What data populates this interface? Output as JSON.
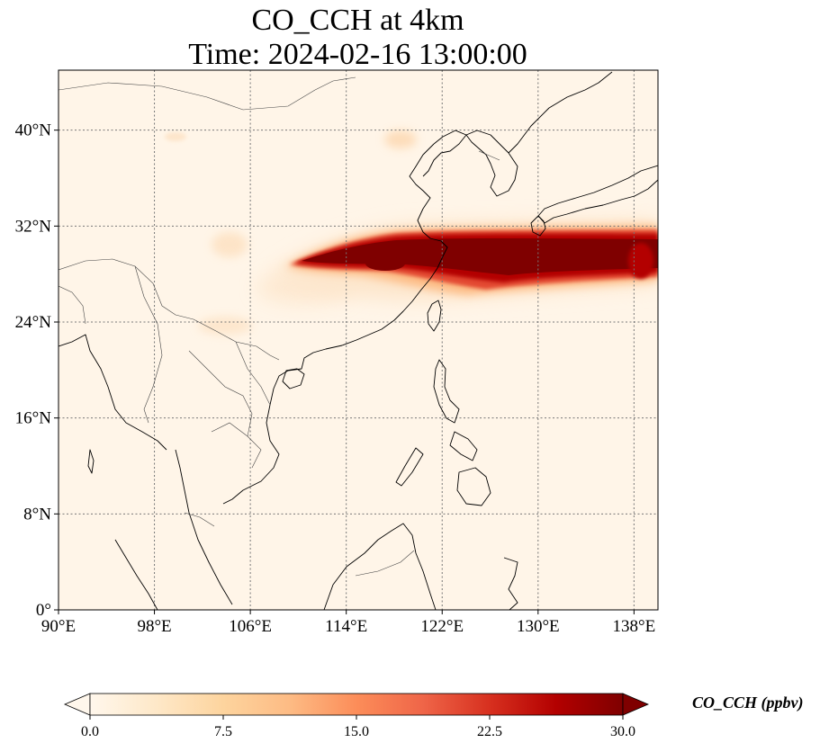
{
  "title": {
    "line1": "CO_CCH at 4km",
    "line2": "Time: 2024-02-16 13:00:00"
  },
  "map": {
    "lon_range": [
      90,
      140
    ],
    "lat_range": [
      0,
      45
    ],
    "lon_ticks": [
      {
        "value": 90,
        "label": "90°E"
      },
      {
        "value": 98,
        "label": "98°E"
      },
      {
        "value": 106,
        "label": "106°E"
      },
      {
        "value": 114,
        "label": "114°E"
      },
      {
        "value": 122,
        "label": "122°E"
      },
      {
        "value": 130,
        "label": "130°E"
      },
      {
        "value": 138,
        "label": "138°E"
      }
    ],
    "lat_ticks": [
      {
        "value": 0,
        "label": "0°"
      },
      {
        "value": 8,
        "label": "8°N"
      },
      {
        "value": 16,
        "label": "16°N"
      },
      {
        "value": 24,
        "label": "24°N"
      },
      {
        "value": 32,
        "label": "32°N"
      },
      {
        "value": 40,
        "label": "40°N"
      }
    ],
    "gridlines": true,
    "background_color": "#fff5e8",
    "coastline_color": "#000000",
    "border_color": "#333333"
  },
  "colorbar": {
    "label": "CO_CCH (ppbv)",
    "min": 0,
    "max": 30,
    "extend": "both",
    "colormap": "OrRd",
    "ticks": [
      {
        "value": 0,
        "label": "0.0"
      },
      {
        "value": 7.5,
        "label": "7.5"
      },
      {
        "value": 15,
        "label": "15.0"
      },
      {
        "value": 22.5,
        "label": "22.5"
      },
      {
        "value": 30,
        "label": "30.0"
      }
    ],
    "stops": [
      "#fff7ec",
      "#fee8c8",
      "#fdd49e",
      "#fdbb84",
      "#fc8d59",
      "#ef6548",
      "#d7301f",
      "#b30000",
      "#7f0000"
    ]
  },
  "plume": {
    "core_color": "#7f0000",
    "high_color": "#b30000",
    "mid_color": "#e34a33",
    "edge_color": "#fdbb84",
    "faint_color": "#fde6cc",
    "core_path_lonlat": [
      [
        109.5,
        29.0
      ],
      [
        113,
        29.8
      ],
      [
        117,
        30.5
      ],
      [
        121,
        30.4
      ],
      [
        126,
        29.8
      ],
      [
        130,
        29.4
      ],
      [
        134,
        29.6
      ],
      [
        140,
        30.2
      ]
    ],
    "core_max_ppbv": 30,
    "secondary_blob_lonlat": [
      116.5,
      28.8
    ]
  }
}
